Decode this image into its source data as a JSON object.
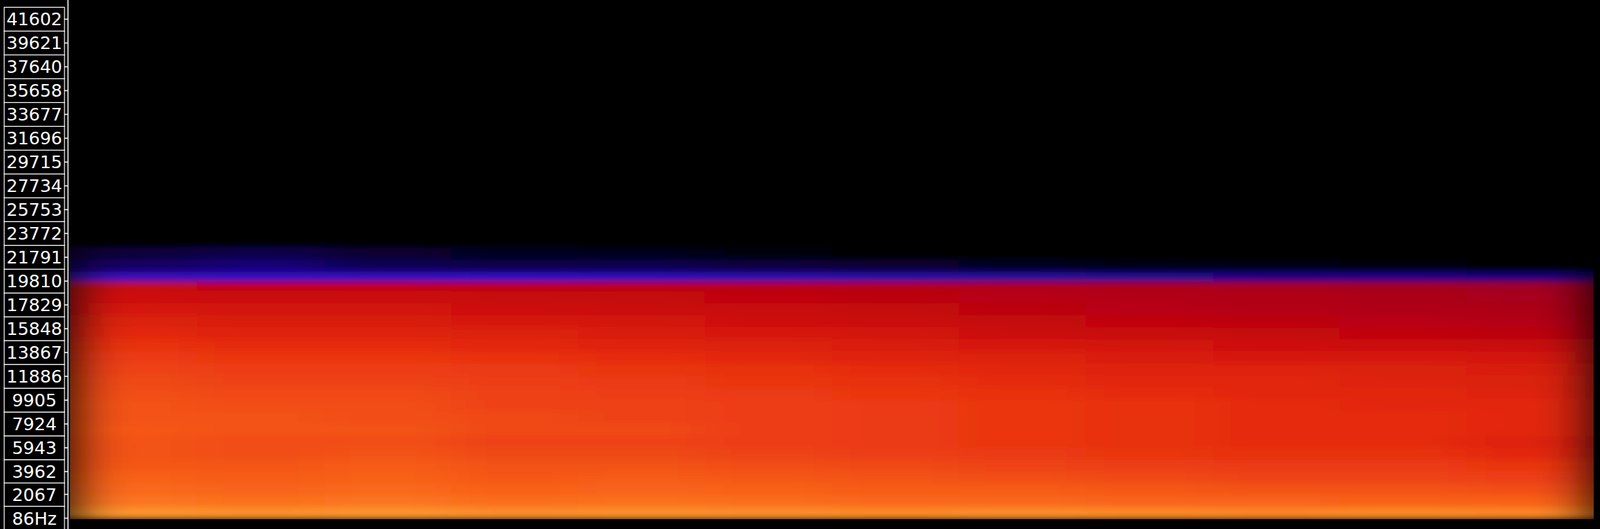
{
  "chart_data": {
    "type": "heatmap",
    "ylim": [
      0,
      43200
    ],
    "yticks": [
      {
        "value": 86,
        "label": "86Hz"
      },
      2067,
      3962,
      5943,
      7924,
      9905,
      11886,
      13867,
      15848,
      17829,
      19810,
      21791,
      23772,
      25753,
      27734,
      29715,
      31696,
      33677,
      35658,
      37640,
      39621,
      41602
    ],
    "xlim": [
      0,
      12
    ],
    "tick_labels": "y",
    "y_bins": [
      0,
      1000,
      2000,
      3000,
      4000,
      5000,
      6000,
      7000,
      8000,
      9000,
      10000,
      11000,
      12000,
      13000,
      14000,
      15000,
      16000,
      17000,
      18000,
      19000,
      19800,
      20600,
      21600,
      22600
    ],
    "color_range": [
      -120,
      0
    ],
    "cells": [
      [
        -22,
        -23,
        -22,
        -24,
        -23,
        -24,
        -25,
        -24,
        -25,
        -26,
        -25,
        -26
      ],
      [
        -30,
        -31,
        -30,
        -32,
        -31,
        -32,
        -33,
        -33,
        -34,
        -34,
        -35,
        -35
      ],
      [
        -33,
        -34,
        -33,
        -35,
        -34,
        -35,
        -36,
        -36,
        -37,
        -38,
        -38,
        -39
      ],
      [
        -35,
        -36,
        -35,
        -37,
        -36,
        -37,
        -38,
        -39,
        -40,
        -41,
        -41,
        -42
      ],
      [
        -37,
        -37,
        -36,
        -38,
        -38,
        -39,
        -40,
        -41,
        -42,
        -43,
        -43,
        -44
      ],
      [
        -38,
        -39,
        -38,
        -40,
        -40,
        -41,
        -42,
        -43,
        -44,
        -45,
        -45,
        -47
      ],
      [
        -38,
        -39,
        -39,
        -41,
        -41,
        -42,
        -43,
        -44,
        -45,
        -46,
        -46,
        -48
      ],
      [
        -37,
        -38,
        -38,
        -40,
        -40,
        -42,
        -43,
        -44,
        -45,
        -46,
        -46,
        -47
      ],
      [
        -38,
        -38,
        -39,
        -40,
        -41,
        -42,
        -43,
        -44,
        -45,
        -46,
        -46,
        -47
      ],
      [
        -38,
        -39,
        -39,
        -41,
        -41,
        -42,
        -43,
        -44,
        -45,
        -46,
        -47,
        -47
      ],
      [
        -39,
        -40,
        -40,
        -41,
        -42,
        -43,
        -44,
        -45,
        -46,
        -47,
        -47,
        -48
      ],
      [
        -40,
        -41,
        -41,
        -42,
        -43,
        -44,
        -45,
        -46,
        -47,
        -47,
        -48,
        -49
      ],
      [
        -41,
        -42,
        -42,
        -43,
        -44,
        -45,
        -46,
        -47,
        -48,
        -48,
        -49,
        -50
      ],
      [
        -43,
        -44,
        -44,
        -45,
        -46,
        -47,
        -48,
        -49,
        -50,
        -51,
        -51,
        -52
      ],
      [
        -45,
        -46,
        -46,
        -47,
        -48,
        -49,
        -50,
        -51,
        -52,
        -53,
        -54,
        -55
      ],
      [
        -47,
        -48,
        -48,
        -49,
        -50,
        -51,
        -52,
        -54,
        -55,
        -56,
        -57,
        -58
      ],
      [
        -49,
        -50,
        -50,
        -51,
        -52,
        -53,
        -54,
        -56,
        -57,
        -58,
        -59,
        -60
      ],
      [
        -51,
        -52,
        -52,
        -53,
        -54,
        -55,
        -56,
        -58,
        -59,
        -60,
        -61,
        -62
      ],
      [
        -53,
        -54,
        -54,
        -55,
        -56,
        -57,
        -58,
        -59,
        -60,
        -61,
        -62,
        -63
      ],
      [
        -56,
        -57,
        -57,
        -58,
        -58,
        -59,
        -60,
        -61,
        -62,
        -63,
        -64,
        -65
      ],
      [
        -92,
        -94,
        -93,
        -95,
        -96,
        -97,
        -98,
        -99,
        -100,
        -101,
        -101,
        -102
      ],
      [
        -104,
        -102,
        -106,
        -108,
        -107,
        -110,
        -112,
        -114,
        -116,
        -117,
        -118,
        -119
      ],
      [
        -110,
        -107,
        -112,
        -114,
        -115,
        -118,
        -119,
        -120,
        -120,
        -120,
        -120,
        -120
      ]
    ]
  }
}
